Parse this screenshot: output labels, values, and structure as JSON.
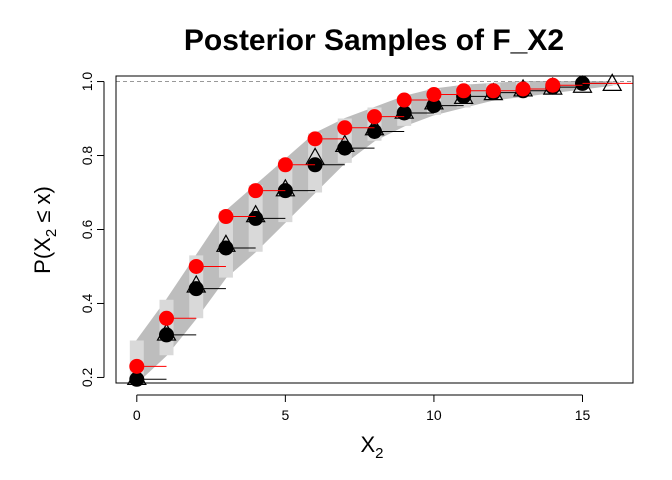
{
  "chart_data": {
    "type": "scatter",
    "title": "Posterior Samples of F_X2",
    "xlabel_main": "X",
    "xlabel_sub": "2",
    "ylabel_prefix": "P(X",
    "ylabel_sub": "2",
    "ylabel_suffix": " ≤ x)",
    "xlim": [
      -0.7,
      16.7
    ],
    "ylim": [
      0.185,
      1.015
    ],
    "xticks": [
      0,
      5,
      10,
      15
    ],
    "xtick_labels": [
      "0",
      "5",
      "10",
      "15"
    ],
    "yticks": [
      0.2,
      0.4,
      0.6,
      0.8,
      1.0
    ],
    "ytick_labels": [
      "0.2",
      "0.4",
      "0.6",
      "0.8",
      "1.0"
    ],
    "reference_line": 1.0,
    "grid": false,
    "colors": {
      "posterior_band": "#bdbdbd",
      "red_series": "#ff0000",
      "black_series": "#000000"
    },
    "band": {
      "x": [
        0,
        1,
        2,
        3,
        4,
        5,
        6,
        7,
        8,
        9,
        10,
        11,
        12,
        13,
        14,
        15,
        16
      ],
      "lower": [
        0.185,
        0.26,
        0.36,
        0.47,
        0.54,
        0.62,
        0.7,
        0.78,
        0.84,
        0.88,
        0.91,
        0.93,
        0.95,
        0.96,
        0.97,
        0.98,
        0.99
      ],
      "upper": [
        0.3,
        0.41,
        0.53,
        0.65,
        0.72,
        0.79,
        0.86,
        0.9,
        0.93,
        0.96,
        0.98,
        0.99,
        0.995,
        1.0,
        1.0,
        1.0,
        1.0
      ]
    },
    "series": [
      {
        "name": "red",
        "marker": "filled-circle",
        "x": [
          0,
          1,
          2,
          3,
          4,
          5,
          6,
          7,
          8,
          9,
          10,
          11,
          12,
          13,
          14,
          15,
          16
        ],
        "values": [
          0.23,
          0.36,
          0.5,
          0.635,
          0.705,
          0.775,
          0.845,
          0.875,
          0.905,
          0.95,
          0.965,
          0.975,
          0.975,
          0.98,
          0.99,
          0.995,
          0.995
        ]
      },
      {
        "name": "black",
        "marker": "filled-circle",
        "x": [
          0,
          1,
          2,
          3,
          4,
          5,
          6,
          7,
          8,
          9,
          10,
          11,
          12,
          13,
          14,
          15
        ],
        "values": [
          0.195,
          0.315,
          0.44,
          0.55,
          0.63,
          0.705,
          0.775,
          0.82,
          0.865,
          0.915,
          0.935,
          0.96,
          0.97,
          0.975,
          0.985,
          0.995
        ]
      },
      {
        "name": "triangles",
        "marker": "open-triangle",
        "x": [
          0,
          1,
          2,
          3,
          4,
          5,
          6,
          7,
          8,
          9,
          10,
          11,
          12,
          13,
          14,
          15,
          16
        ],
        "values": [
          0.2,
          0.32,
          0.45,
          0.56,
          0.64,
          0.71,
          0.795,
          0.83,
          0.875,
          0.92,
          0.945,
          0.96,
          0.97,
          0.98,
          0.985,
          0.99,
          0.995
        ]
      }
    ]
  }
}
